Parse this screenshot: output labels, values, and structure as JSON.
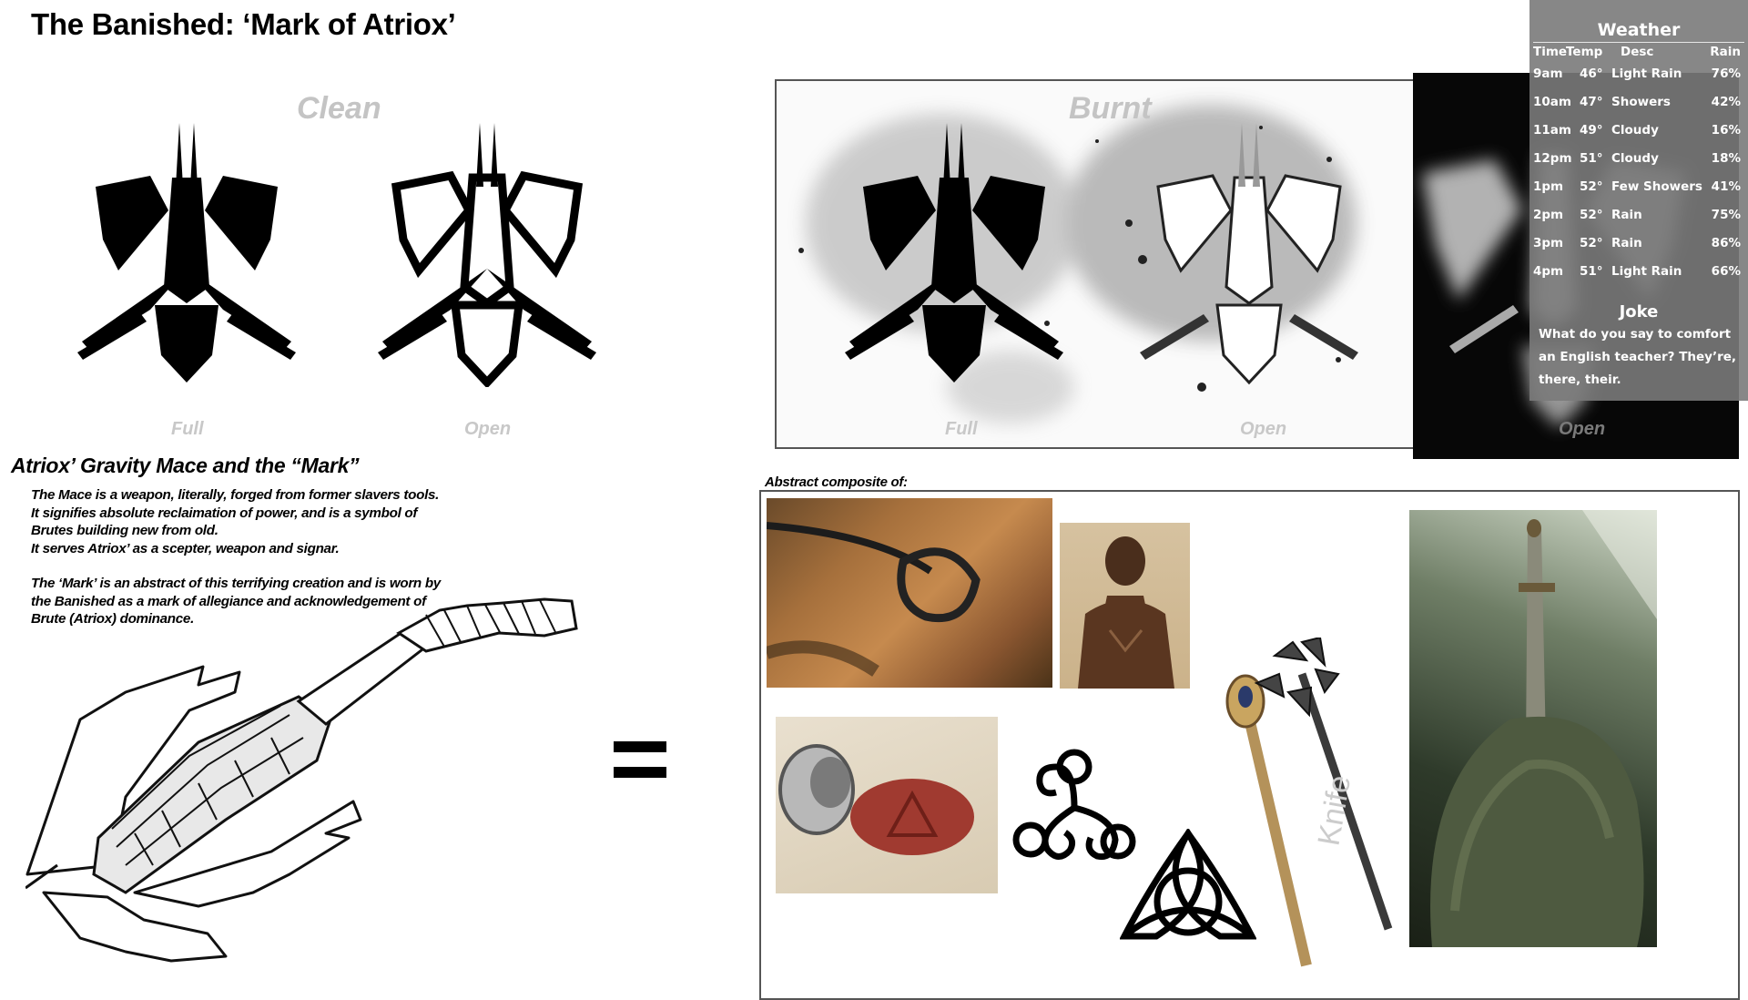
{
  "title": "The Banished: ‘Mark of Atriox’",
  "clean_section": {
    "heading": "Clean",
    "caption_full": "Full",
    "caption_open": "Open"
  },
  "burnt_section": {
    "heading": "Burnt",
    "caption_full": "Full",
    "caption_open": "Open",
    "caption_open_dark": "Open"
  },
  "mace_section": {
    "title": "Atriox’ Gravity Mace and the “Mark”",
    "lines": [
      "The Mace is a weapon, literally, forged from former slavers tools.",
      "It signifies absolute reclaimation of power, and is a symbol of Brutes building new from old.",
      "It serves Atriox’ as a scepter, weapon and signar."
    ],
    "mark_text": "The ‘Mark’ is an abstract of this terrifying creation and is worn by the Banished as a mark of allegiance and acknowledgement of Brute (Atriox) dominance."
  },
  "composite": {
    "label": "Abstract composite of:",
    "watermark": "Knife"
  },
  "weather": {
    "title": "Weather",
    "headers": {
      "time": "Time",
      "temp": "Temp",
      "desc": "Desc",
      "rain": "Rain"
    },
    "rows": [
      {
        "time": "9am",
        "temp": "46°",
        "desc": "Light Rain",
        "rain": "76%"
      },
      {
        "time": "10am",
        "temp": "47°",
        "desc": "Showers",
        "rain": "42%"
      },
      {
        "time": "11am",
        "temp": "49°",
        "desc": "Cloudy",
        "rain": "16%"
      },
      {
        "time": "12pm",
        "temp": "51°",
        "desc": "Cloudy",
        "rain": "18%"
      },
      {
        "time": "1pm",
        "temp": "52°",
        "desc": "Few Showers",
        "rain": "41%"
      },
      {
        "time": "2pm",
        "temp": "52°",
        "desc": "Rain",
        "rain": "75%"
      },
      {
        "time": "3pm",
        "temp": "52°",
        "desc": "Rain",
        "rain": "86%"
      },
      {
        "time": "4pm",
        "temp": "51°",
        "desc": "Light Rain",
        "rain": "66%"
      }
    ],
    "joke_title": "Joke",
    "joke_text": "What do you say to comfort an English teacher? They’re, there, their."
  },
  "colors": {
    "caption_grey": "#c8c8c8",
    "widget_bg": "#7a7a7a",
    "dark_panel": "#070707",
    "wax_red": "#a03a30"
  },
  "icons": [
    "banished-mark-full-icon",
    "banished-mark-open-icon",
    "gravity-mace-illustration",
    "equals-icon",
    "triskelion-icon",
    "triquetra-icon",
    "sword-in-stone-photo"
  ]
}
